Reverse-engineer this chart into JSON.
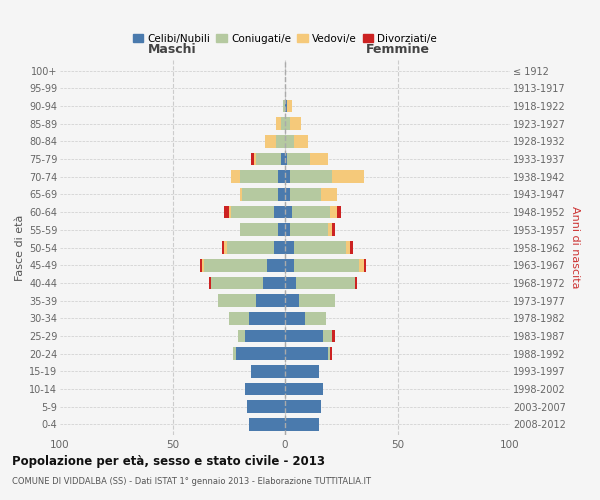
{
  "age_groups": [
    "0-4",
    "5-9",
    "10-14",
    "15-19",
    "20-24",
    "25-29",
    "30-34",
    "35-39",
    "40-44",
    "45-49",
    "50-54",
    "55-59",
    "60-64",
    "65-69",
    "70-74",
    "75-79",
    "80-84",
    "85-89",
    "90-94",
    "95-99",
    "100+"
  ],
  "birth_years": [
    "2008-2012",
    "2003-2007",
    "1998-2002",
    "1993-1997",
    "1988-1992",
    "1983-1987",
    "1978-1982",
    "1973-1977",
    "1968-1972",
    "1963-1967",
    "1958-1962",
    "1953-1957",
    "1948-1952",
    "1943-1947",
    "1938-1942",
    "1933-1937",
    "1928-1932",
    "1923-1927",
    "1918-1922",
    "1913-1917",
    "≤ 1912"
  ],
  "colors": {
    "celibe": "#4a7aad",
    "coniugato": "#b5c9a0",
    "vedovo": "#f5c97a",
    "divorziato": "#cc2222"
  },
  "maschi": {
    "celibe": [
      16,
      17,
      18,
      15,
      22,
      18,
      16,
      13,
      10,
      8,
      5,
      3,
      5,
      3,
      3,
      2,
      0,
      0,
      0,
      0,
      0
    ],
    "coniugato": [
      0,
      0,
      0,
      0,
      1,
      3,
      9,
      17,
      23,
      28,
      21,
      17,
      19,
      16,
      17,
      11,
      4,
      2,
      1,
      0,
      0
    ],
    "vedovo": [
      0,
      0,
      0,
      0,
      0,
      0,
      0,
      0,
      0,
      1,
      1,
      0,
      1,
      1,
      4,
      1,
      5,
      2,
      0,
      0,
      0
    ],
    "divorziato": [
      0,
      0,
      0,
      0,
      0,
      0,
      0,
      0,
      1,
      1,
      1,
      0,
      2,
      0,
      0,
      1,
      0,
      0,
      0,
      0,
      0
    ]
  },
  "femmine": {
    "nubile": [
      15,
      16,
      17,
      15,
      19,
      17,
      9,
      6,
      5,
      4,
      4,
      2,
      3,
      2,
      2,
      1,
      0,
      0,
      1,
      0,
      0
    ],
    "coniugata": [
      0,
      0,
      0,
      0,
      1,
      4,
      9,
      16,
      26,
      29,
      23,
      17,
      17,
      14,
      19,
      10,
      4,
      2,
      0,
      0,
      0
    ],
    "vedova": [
      0,
      0,
      0,
      0,
      0,
      0,
      0,
      0,
      0,
      2,
      2,
      2,
      3,
      7,
      14,
      8,
      6,
      5,
      2,
      0,
      0
    ],
    "divorziata": [
      0,
      0,
      0,
      0,
      1,
      1,
      0,
      0,
      1,
      1,
      1,
      1,
      2,
      0,
      0,
      0,
      0,
      0,
      0,
      0,
      0
    ]
  },
  "title": "Popolazione per età, sesso e stato civile - 2013",
  "subtitle": "COMUNE DI VIDDALBA (SS) - Dati ISTAT 1° gennaio 2013 - Elaborazione TUTTITALIA.IT",
  "xlabel_left": "Maschi",
  "xlabel_right": "Femmine",
  "ylabel_left": "Fasce di età",
  "ylabel_right": "Anni di nascita",
  "xlim": 100,
  "legend_labels": [
    "Celibi/Nubili",
    "Coniugati/e",
    "Vedovi/e",
    "Divorziati/e"
  ],
  "bg_color": "#f5f5f5",
  "bar_height": 0.72
}
